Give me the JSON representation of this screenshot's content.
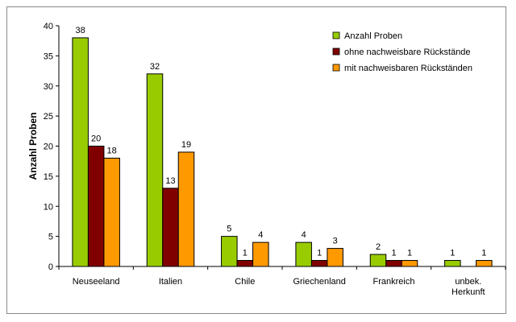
{
  "chart_data": {
    "type": "bar",
    "title": "",
    "xlabel": "",
    "ylabel": "Anzahl Proben",
    "ylim": [
      0,
      40
    ],
    "yticks": [
      0,
      5,
      10,
      15,
      20,
      25,
      30,
      35,
      40
    ],
    "grid": false,
    "legend_position": "top-right",
    "categories": [
      [
        "Neuseeland"
      ],
      [
        "Italien"
      ],
      [
        "Chile"
      ],
      [
        "Griechenland"
      ],
      [
        "Frankreich"
      ],
      [
        "unbek.",
        "Herkunft"
      ]
    ],
    "series": [
      {
        "name": "Anzahl Proben",
        "color": "#99cc00",
        "values": [
          38,
          32,
          5,
          4,
          2,
          1
        ]
      },
      {
        "name": "ohne nachweisbare Rückstände",
        "color": "#800000",
        "values": [
          20,
          13,
          1,
          1,
          1,
          null
        ]
      },
      {
        "name": "mit nachweisbaren Rückständen",
        "color": "#ff9900",
        "values": [
          18,
          19,
          4,
          3,
          1,
          1
        ]
      }
    ]
  }
}
